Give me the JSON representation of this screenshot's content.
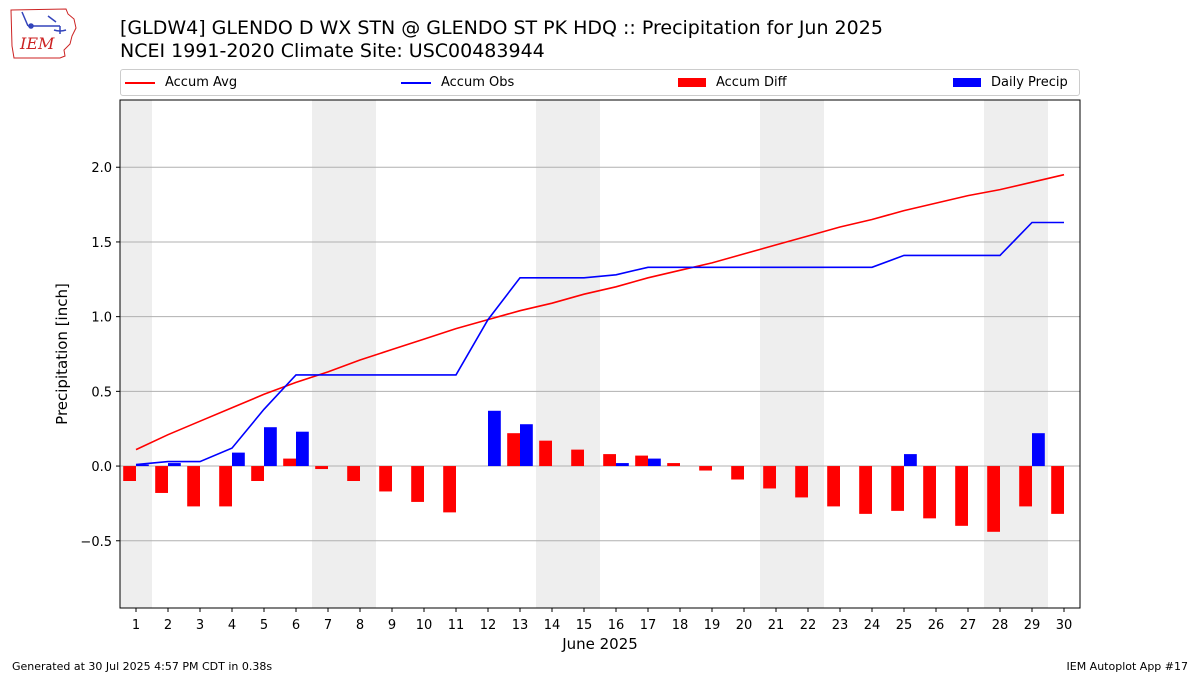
{
  "header": {
    "title_line1": "[GLDW4] GLENDO D WX STN @ GLENDO ST PK HDQ :: Precipitation for Jun 2025",
    "title_line2": "NCEI 1991-2020 Climate Site: USC00483944",
    "logo_text": "IEM"
  },
  "legend": {
    "placement": "top, horizontal above plot",
    "items": [
      {
        "label": "Accum Avg",
        "kind": "line",
        "color": "#ff0000"
      },
      {
        "label": "Accum Obs",
        "kind": "line",
        "color": "#0000ff"
      },
      {
        "label": "Accum Diff",
        "kind": "bar",
        "color": "#ff0000"
      },
      {
        "label": "Daily Precip",
        "kind": "bar",
        "color": "#0000ff"
      }
    ]
  },
  "chart_data": {
    "type": "bar+line",
    "title": "[GLDW4] GLENDO D WX STN @ GLENDO ST PK HDQ :: Precipitation for Jun 2025",
    "subtitle": "NCEI 1991-2020 Climate Site: USC00483944",
    "xlabel": "June 2025",
    "ylabel": "Precipitation [inch]",
    "x": [
      1,
      2,
      3,
      4,
      5,
      6,
      7,
      8,
      9,
      10,
      11,
      12,
      13,
      14,
      15,
      16,
      17,
      18,
      19,
      20,
      21,
      22,
      23,
      24,
      25,
      26,
      27,
      28,
      29,
      30
    ],
    "xlim": [
      0.5,
      30.5
    ],
    "ylim": [
      -0.95,
      2.45
    ],
    "yticks": [
      -0.5,
      0.0,
      0.5,
      1.0,
      1.5,
      2.0
    ],
    "ytick_labels": [
      "−0.5",
      "0.0",
      "0.5",
      "1.0",
      "1.5",
      "2.0"
    ],
    "grid": "horizontal at y ticks",
    "weekend_shading": [
      [
        0.5,
        1.5
      ],
      [
        6.5,
        8.5
      ],
      [
        13.5,
        15.5
      ],
      [
        20.5,
        22.5
      ],
      [
        27.5,
        29.5
      ]
    ],
    "shading_color": "#eeeeee",
    "series": [
      {
        "name": "Accum Avg",
        "type": "line",
        "color": "#ff0000",
        "values": [
          0.11,
          0.21,
          0.3,
          0.39,
          0.48,
          0.56,
          0.63,
          0.71,
          0.78,
          0.85,
          0.92,
          0.98,
          1.04,
          1.09,
          1.15,
          1.2,
          1.26,
          1.31,
          1.36,
          1.42,
          1.48,
          1.54,
          1.6,
          1.65,
          1.71,
          1.76,
          1.81,
          1.85,
          1.9,
          1.95
        ]
      },
      {
        "name": "Accum Obs",
        "type": "line",
        "color": "#0000ff",
        "values": [
          0.01,
          0.03,
          0.03,
          0.12,
          0.38,
          0.61,
          0.61,
          0.61,
          0.61,
          0.61,
          0.61,
          0.98,
          1.26,
          1.26,
          1.26,
          1.28,
          1.33,
          1.33,
          1.33,
          1.33,
          1.33,
          1.33,
          1.33,
          1.33,
          1.41,
          1.41,
          1.41,
          1.41,
          1.63,
          1.63
        ]
      },
      {
        "name": "Accum Diff",
        "type": "bar",
        "color": "#ff0000",
        "values": [
          -0.1,
          -0.18,
          -0.27,
          -0.27,
          -0.1,
          0.05,
          -0.02,
          -0.1,
          -0.17,
          -0.24,
          -0.31,
          0.0,
          0.22,
          0.17,
          0.11,
          0.08,
          0.07,
          0.02,
          -0.03,
          -0.09,
          -0.15,
          -0.21,
          -0.27,
          -0.32,
          -0.3,
          -0.35,
          -0.4,
          -0.44,
          -0.27,
          -0.32
        ]
      },
      {
        "name": "Daily Precip",
        "type": "bar",
        "color": "#0000ff",
        "values": [
          0.01,
          0.02,
          0.0,
          0.09,
          0.26,
          0.23,
          0.0,
          0.0,
          0.0,
          0.0,
          0.0,
          0.37,
          0.28,
          0.0,
          0.0,
          0.02,
          0.05,
          0.0,
          0.0,
          0.0,
          0.0,
          0.0,
          0.0,
          0.0,
          0.08,
          0.0,
          0.0,
          0.0,
          0.22,
          0.0
        ]
      }
    ]
  },
  "footer": {
    "generated": "Generated at 30 Jul 2025 4:57 PM CDT in 0.38s",
    "app": "IEM Autoplot App #17"
  }
}
